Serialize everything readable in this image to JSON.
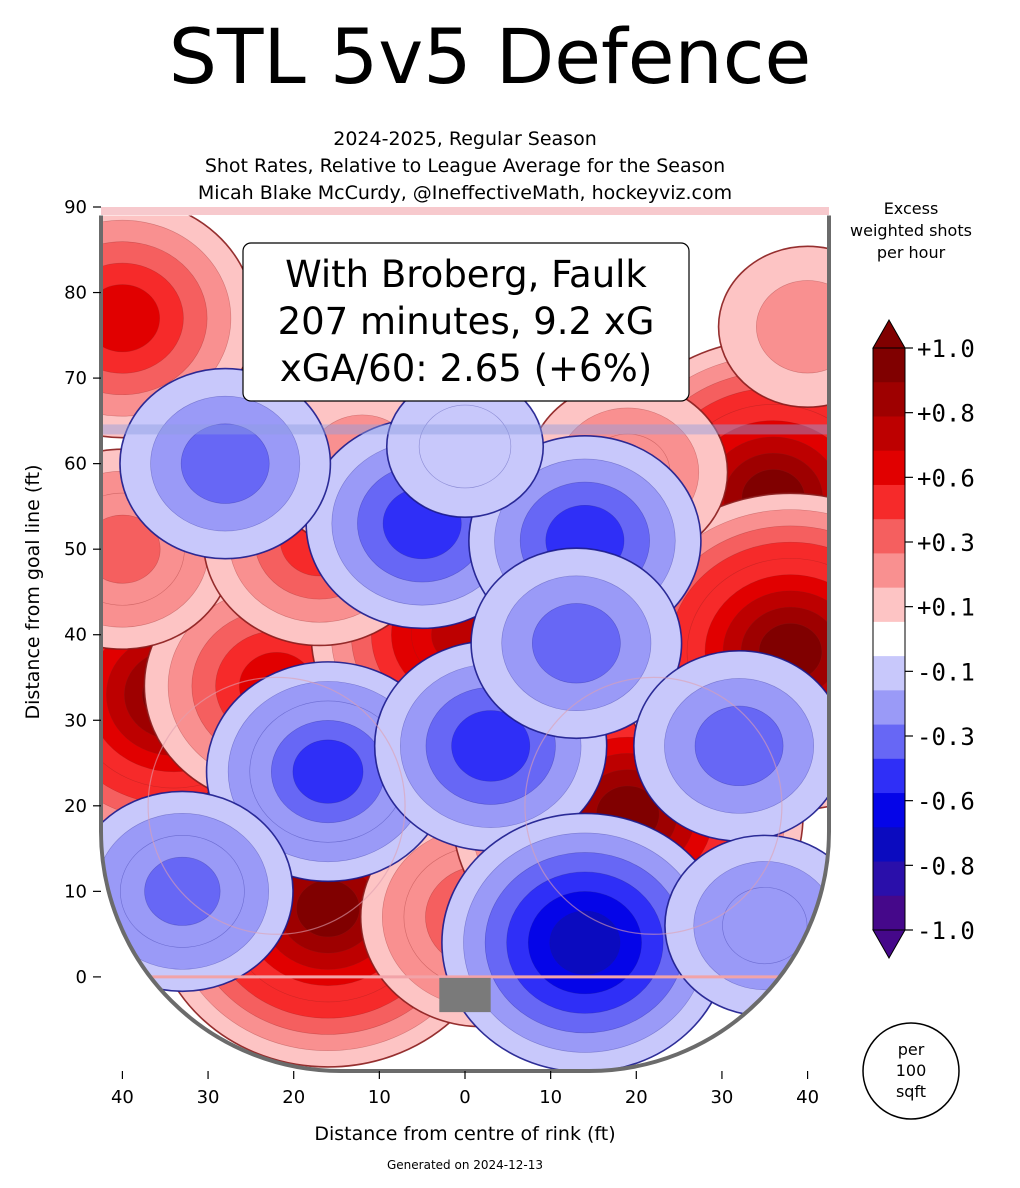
{
  "title": "STL 5v5 Defence",
  "subtitle_lines": [
    "2024-2025, Regular Season",
    "Shot Rates, Relative to League Average for the Season",
    "Micah Blake McCurdy, @IneffectiveMath, hockeyviz.com"
  ],
  "info_box": {
    "line1": "With Broberg, Faulk",
    "line2": "207 minutes, 9.2 xG",
    "line3": "xGA/60: 2.65 (+6%)"
  },
  "colorbar": {
    "title_lines": [
      "Excess",
      "weighted shots",
      "per hour"
    ],
    "tick_labels": [
      "+1.0",
      "+0.8",
      "+0.6",
      "+0.3",
      "+0.1",
      "-0.1",
      "-0.3",
      "-0.6",
      "-0.8",
      "-1.0"
    ],
    "colors": [
      "#800000",
      "#9e0000",
      "#bd0000",
      "#e10000",
      "#f62a2a",
      "#f55f5f",
      "#f99090",
      "#fdc4c4",
      "#ffffff",
      "#c8c8fb",
      "#9a9af7",
      "#6767f5",
      "#2f2ff7",
      "#0505e8",
      "#0b0bbf",
      "#2a0faa",
      "#45088a"
    ]
  },
  "per_area_label": [
    "per",
    "100",
    "sqft"
  ],
  "footer": "Generated on 2024-12-13",
  "chart_data": {
    "type": "heatmap",
    "xlabel": "Distance from centre of rink (ft)",
    "ylabel": "Distance from goal line (ft)",
    "x_tick_labels": [
      "40",
      "30",
      "20",
      "10",
      "0",
      "10",
      "20",
      "30",
      "40"
    ],
    "x_tick_values": [
      -40,
      -30,
      -20,
      -10,
      0,
      10,
      20,
      30,
      40
    ],
    "y_tick_values": [
      0,
      10,
      20,
      30,
      40,
      50,
      60,
      70,
      80,
      90
    ],
    "xlim": [
      -42.5,
      42.5
    ],
    "ylim": [
      -11,
      90
    ],
    "zlim": [
      -1.0,
      1.0
    ],
    "hotspots": [
      {
        "x": -34,
        "y": 33,
        "value": 1.0
      },
      {
        "x": -22,
        "y": 34,
        "value": 0.6
      },
      {
        "x": -40,
        "y": 50,
        "value": 0.4
      },
      {
        "x": -40,
        "y": 77,
        "value": 0.6
      },
      {
        "x": -16,
        "y": 8,
        "value": 1.0
      },
      {
        "x": 0,
        "y": 40,
        "value": 0.8
      },
      {
        "x": 2,
        "y": 7,
        "value": 0.5
      },
      {
        "x": -17,
        "y": 51,
        "value": 0.45
      },
      {
        "x": -12,
        "y": 60,
        "value": 0.25
      },
      {
        "x": 19,
        "y": 19,
        "value": 1.0
      },
      {
        "x": 36,
        "y": 56,
        "value": 1.0
      },
      {
        "x": 38,
        "y": 38,
        "value": 1.0
      },
      {
        "x": 40,
        "y": 76,
        "value": 0.2
      },
      {
        "x": 19,
        "y": 59,
        "value": 0.3
      },
      {
        "x": -16,
        "y": 24,
        "value": -0.5
      },
      {
        "x": 3,
        "y": 27,
        "value": -0.45
      },
      {
        "x": 14,
        "y": 4,
        "value": -0.7
      },
      {
        "x": -5,
        "y": 53,
        "value": -0.45
      },
      {
        "x": 14,
        "y": 51,
        "value": -0.45
      },
      {
        "x": 13,
        "y": 39,
        "value": -0.35
      },
      {
        "x": -28,
        "y": 60,
        "value": -0.35
      },
      {
        "x": -33,
        "y": 10,
        "value": -0.4
      },
      {
        "x": 32,
        "y": 27,
        "value": -0.35
      },
      {
        "x": 35,
        "y": 6,
        "value": -0.3
      },
      {
        "x": 0,
        "y": 62,
        "value": -0.1
      }
    ]
  }
}
